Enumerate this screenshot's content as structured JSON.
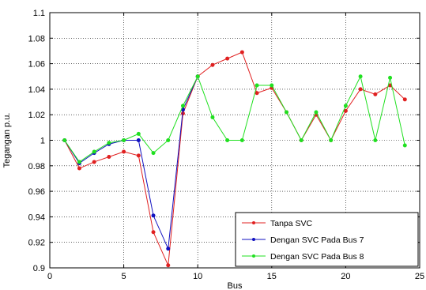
{
  "chart_data": {
    "type": "line",
    "xlabel": "Bus",
    "ylabel": "Tegangan p.u.",
    "xlim": [
      0,
      25
    ],
    "ylim": [
      0.9,
      1.1
    ],
    "xticks": [
      0,
      5,
      10,
      15,
      20,
      25
    ],
    "yticks": [
      0.9,
      0.92,
      0.94,
      0.96,
      0.98,
      1,
      1.02,
      1.04,
      1.06,
      1.08,
      1.1
    ],
    "ytick_labels": [
      "0.9",
      "0.92",
      "0.94",
      "0.96",
      "0.98",
      "1",
      "1.02",
      "1.04",
      "1.06",
      "1.08",
      "1.1"
    ],
    "grid": true,
    "legend_position": "bottom-right",
    "series": [
      {
        "name": "Tanpa SVC",
        "color": "#e02020",
        "x": [
          1,
          2,
          3,
          4,
          5,
          6,
          7,
          8,
          9,
          10,
          11,
          12,
          13,
          14,
          15,
          16,
          17,
          18,
          19,
          20,
          21,
          22,
          23,
          24
        ],
        "values": [
          1.0,
          0.978,
          0.983,
          0.987,
          0.991,
          0.988,
          0.928,
          0.902,
          1.021,
          1.05,
          1.059,
          1.064,
          1.069,
          1.037,
          1.041,
          1.022,
          1.0,
          1.02,
          1.0,
          1.023,
          1.04,
          1.036,
          1.043,
          1.032
        ]
      },
      {
        "name": "Dengan SVC Pada Bus 7",
        "color": "#1010c0",
        "x": [
          1,
          2,
          3,
          4,
          5,
          6,
          7,
          8,
          9,
          10
        ],
        "values": [
          1.0,
          0.982,
          0.99,
          0.997,
          1.0,
          1.0,
          0.941,
          0.915,
          1.024,
          1.05
        ]
      },
      {
        "name": "Dengan SVC Pada Bus 8",
        "color": "#20e020",
        "x": [
          1,
          2,
          3,
          4,
          5,
          6,
          7,
          8,
          9,
          10,
          11,
          12,
          13,
          14,
          15,
          16,
          17,
          18,
          19,
          20,
          21,
          22,
          23,
          24
        ],
        "values": [
          1.0,
          0.983,
          0.991,
          0.998,
          1.0,
          1.005,
          0.99,
          1.0,
          1.027,
          1.05,
          1.018,
          1.0,
          1.0,
          1.043,
          1.043,
          1.022,
          1.0,
          1.022,
          1.0,
          1.027,
          1.05,
          1.0,
          1.049,
          0.996
        ]
      }
    ]
  }
}
